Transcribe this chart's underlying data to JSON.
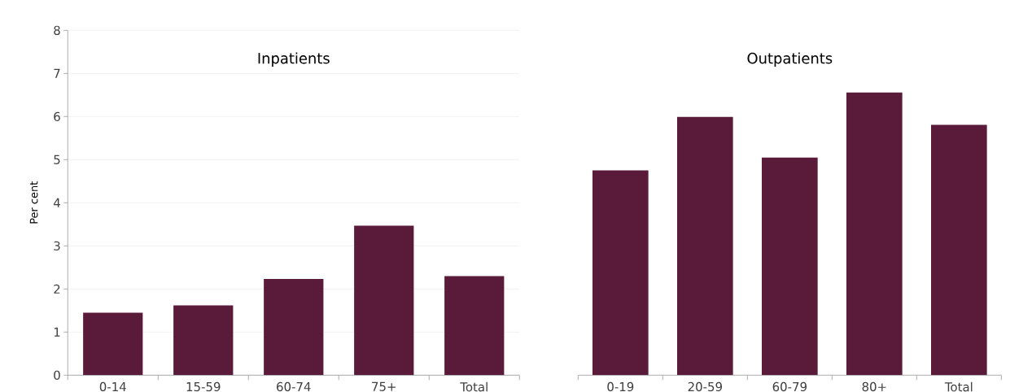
{
  "chart_data": [
    {
      "type": "bar",
      "title": "Inpatients",
      "ylabel": "Per cent",
      "categories": [
        "0-14",
        "15-59",
        "60-74",
        "75+",
        "Total"
      ],
      "values": [
        1.45,
        1.62,
        2.23,
        3.47,
        2.3
      ],
      "color": "#5a1a3a",
      "ylim": [
        0,
        8
      ],
      "yticks": [
        0,
        1,
        2,
        3,
        4,
        5,
        6,
        7,
        8
      ],
      "grid": "y"
    },
    {
      "type": "bar",
      "title": "Outpatients",
      "categories": [
        "0-19",
        "20-59",
        "60-79",
        "80+",
        "Total"
      ],
      "values": [
        4.75,
        5.99,
        5.05,
        6.56,
        5.81
      ],
      "color": "#5a1a3a",
      "ylim": [
        0,
        8
      ],
      "yticks": [
        0,
        1,
        2,
        3,
        4,
        5,
        6,
        7,
        8
      ],
      "grid": "y",
      "tick_labels": "x"
    }
  ]
}
